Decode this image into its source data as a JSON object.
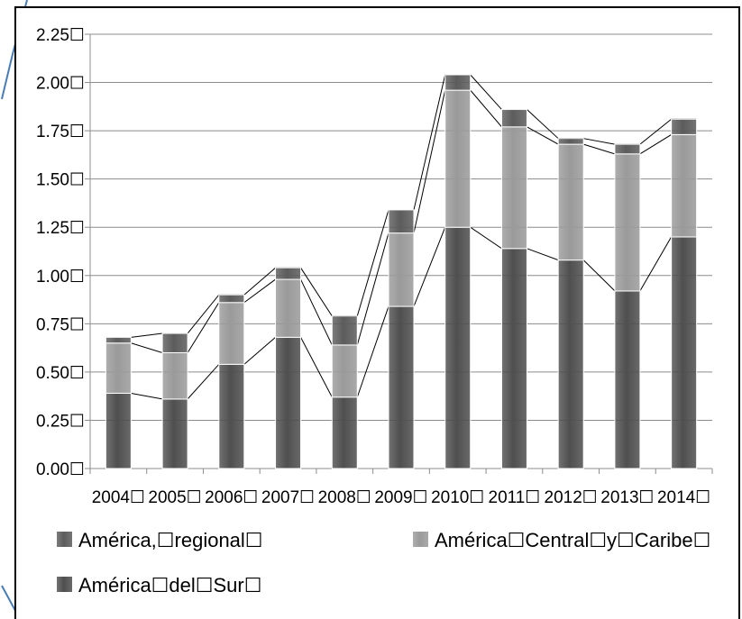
{
  "chart_data": {
    "type": "bar",
    "stacked": true,
    "categories": [
      "2004☐",
      "2005☐",
      "2006☐",
      "2007☐",
      "2008☐",
      "2009☐",
      "2010☐",
      "2011☐",
      "2012☐",
      "2013☐",
      "2014☐"
    ],
    "series": [
      {
        "name": "América☐del☐Sur☐",
        "color": "#4f4f4f",
        "values": [
          0.39,
          0.36,
          0.54,
          0.68,
          0.37,
          0.84,
          1.25,
          1.14,
          1.08,
          0.92,
          1.2
        ]
      },
      {
        "name": "América☐Central☐y☐Caribe☐",
        "color": "#9a9a9a",
        "values": [
          0.26,
          0.24,
          0.32,
          0.3,
          0.27,
          0.38,
          0.71,
          0.63,
          0.6,
          0.71,
          0.53
        ]
      },
      {
        "name": "América,☐regional☐",
        "color": "#5c5c5c",
        "values": [
          0.03,
          0.1,
          0.04,
          0.06,
          0.15,
          0.12,
          0.08,
          0.09,
          0.03,
          0.05,
          0.08
        ]
      }
    ],
    "y_ticks": [
      "0.00☐",
      "0.25☐",
      "0.50☐",
      "0.75☐",
      "1.00☐",
      "1.25☐",
      "1.50☐",
      "1.75☐",
      "2.00☐",
      "2.25☐"
    ],
    "ylim": [
      0,
      2.25
    ],
    "grid": true,
    "series_lines": true,
    "legend_position": "bottom",
    "title": "",
    "xlabel": "",
    "ylabel": ""
  }
}
